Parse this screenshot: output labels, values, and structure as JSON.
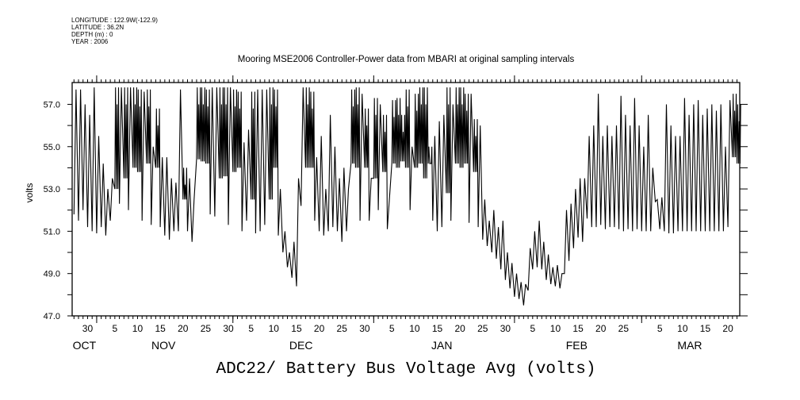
{
  "header": {
    "longitude": "LONGITUDE : 122.9W(-122.9)",
    "latitude": "LATITUDE : 36.2N",
    "depth": "DEPTH (m) : 0",
    "year": "YEAR : 2006"
  },
  "chart_data": {
    "type": "line",
    "title": "Mooring MSE2006 Controller-Power data from MBARI at original sampling intervals",
    "xlabel": "ADC22/ Battery Bus Voltage Avg (volts)",
    "ylabel": "volts",
    "x_units": "days since 2006-10-01",
    "xlim": [
      25.6,
      172.6
    ],
    "ylim": [
      47.0,
      58.03
    ],
    "grid": false,
    "y_ticks": [
      47,
      48,
      49,
      50,
      51,
      52,
      53,
      54,
      55,
      56,
      57
    ],
    "y_tick_labels": [
      {
        "v": 47,
        "t": "47.0"
      },
      {
        "v": 49,
        "t": "49.0"
      },
      {
        "v": 51,
        "t": "51.0"
      },
      {
        "v": 53,
        "t": "53.0"
      },
      {
        "v": 55,
        "t": "55.0"
      },
      {
        "v": 57,
        "t": "57.0"
      }
    ],
    "x_tick_labels": [
      {
        "d": 29,
        "t": "30"
      },
      {
        "d": 35,
        "t": "5"
      },
      {
        "d": 40,
        "t": "10"
      },
      {
        "d": 45,
        "t": "15"
      },
      {
        "d": 50,
        "t": "20"
      },
      {
        "d": 55,
        "t": "25"
      },
      {
        "d": 60,
        "t": "30"
      },
      {
        "d": 65,
        "t": "5"
      },
      {
        "d": 70,
        "t": "10"
      },
      {
        "d": 75,
        "t": "15"
      },
      {
        "d": 80,
        "t": "20"
      },
      {
        "d": 85,
        "t": "25"
      },
      {
        "d": 90,
        "t": "30"
      },
      {
        "d": 96,
        "t": "5"
      },
      {
        "d": 101,
        "t": "10"
      },
      {
        "d": 106,
        "t": "15"
      },
      {
        "d": 111,
        "t": "20"
      },
      {
        "d": 116,
        "t": "25"
      },
      {
        "d": 121,
        "t": "30"
      },
      {
        "d": 127,
        "t": "5"
      },
      {
        "d": 132,
        "t": "10"
      },
      {
        "d": 137,
        "t": "15"
      },
      {
        "d": 142,
        "t": "20"
      },
      {
        "d": 147,
        "t": "25"
      },
      {
        "d": 155,
        "t": "5"
      },
      {
        "d": 160,
        "t": "10"
      },
      {
        "d": 165,
        "t": "15"
      },
      {
        "d": 170,
        "t": "20"
      }
    ],
    "month_boundaries": [
      31,
      61,
      92,
      123,
      151
    ],
    "month_labels": [
      {
        "d": 28.3,
        "t": "OCT"
      },
      {
        "d": 45.7,
        "t": "NOV"
      },
      {
        "d": 76,
        "t": "DEC"
      },
      {
        "d": 107,
        "t": "JAN"
      },
      {
        "d": 136.7,
        "t": "FEB"
      },
      {
        "d": 161.6,
        "t": "MAR"
      }
    ],
    "series": [
      {
        "name": "Battery Bus Voltage Avg",
        "start_day": 26,
        "daily_max": [
          57.7,
          57.7,
          57.0,
          56.5,
          57.8,
          55.5,
          54.2,
          53.0,
          53.5,
          57.8,
          57.8,
          57.8,
          57.8,
          57.8,
          57.7,
          57.6,
          57.7,
          55.0,
          56.8,
          54.5,
          54.5,
          53.5,
          53.3,
          57.7,
          54.0,
          53.5,
          52.5,
          57.8,
          57.8,
          57.7,
          57.8,
          57.8,
          57.8,
          57.8,
          57.8,
          57.7,
          57.6,
          55.2,
          55.8,
          57.6,
          57.7,
          57.7,
          57.7,
          57.8,
          57.7,
          53.0,
          51.0,
          50.0,
          50.5,
          53.5,
          57.8,
          57.8,
          57.6,
          54.5,
          55.5,
          53.0,
          56.5,
          55.0,
          53.5,
          54.0,
          53.0,
          57.7,
          57.8,
          57.5,
          56.8,
          53.5,
          57.3,
          57.0,
          56.5,
          52.5,
          57.2,
          57.3,
          56.5,
          57.7,
          55.0,
          57.5,
          57.8,
          57.8,
          55.0,
          55.5,
          56.2,
          56.5,
          57.8,
          57.0,
          57.8,
          57.8,
          57.5,
          57.5,
          56.3,
          56.0,
          52.5,
          51.5,
          52.0,
          51.2,
          51.5,
          50.0,
          49.5,
          49.0,
          48.6,
          48.5,
          50.2,
          51.0,
          51.5,
          50.5,
          49.9,
          49.3,
          49.4,
          49.0,
          52.0,
          52.3,
          53.0,
          53.5,
          53.5,
          55.5,
          56.0,
          57.5,
          55.5,
          56.0,
          55.5,
          56.0,
          57.4,
          56.5,
          56.0,
          57.3,
          56.0,
          55.0,
          56.5,
          54.0,
          52.5,
          52.6,
          57.0,
          56.0,
          55.5,
          55.5,
          57.3,
          56.5,
          57.0,
          57.2,
          56.5,
          56.8,
          57.0,
          56.7,
          57.0,
          55.0,
          57.2,
          57.5,
          57.0
        ],
        "daily_min": [
          51.8,
          51.5,
          52.0,
          51.2,
          51.0,
          50.9,
          51.2,
          50.8,
          51.5,
          53.0,
          52.3,
          53.5,
          52.0,
          54.0,
          53.8,
          51.5,
          54.2,
          51.3,
          54.0,
          51.2,
          50.8,
          50.6,
          51.0,
          51.0,
          52.5,
          51.0,
          50.5,
          54.4,
          54.3,
          54.2,
          51.8,
          51.7,
          53.5,
          53.6,
          51.3,
          53.8,
          54.0,
          51.0,
          51.5,
          52.5,
          50.9,
          51.0,
          51.3,
          52.5,
          54.0,
          50.8,
          50.0,
          49.3,
          48.8,
          48.4,
          52.2,
          54.0,
          54.0,
          51.5,
          51.0,
          50.8,
          51.0,
          51.2,
          51.0,
          50.5,
          51.0,
          54.2,
          54.0,
          51.5,
          54.0,
          51.5,
          53.5,
          52.0,
          53.8,
          51.1,
          54.2,
          54.0,
          54.3,
          54.0,
          52.0,
          54.0,
          54.2,
          53.5,
          54.2,
          51.5,
          51.0,
          51.2,
          52.8,
          51.5,
          54.2,
          54.0,
          54.2,
          51.4,
          53.8,
          51.2,
          50.6,
          50.3,
          50.0,
          49.7,
          49.2,
          48.7,
          48.3,
          47.9,
          47.8,
          47.5,
          48.2,
          49.2,
          49.3,
          49.2,
          48.7,
          48.5,
          48.4,
          48.3,
          49.0,
          49.6,
          50.2,
          50.7,
          50.5,
          51.6,
          51.2,
          51.2,
          51.3,
          51.1,
          51.2,
          51.2,
          51.1,
          51.0,
          51.1,
          51.0,
          51.1,
          51.0,
          51.0,
          51.0,
          52.4,
          51.1,
          51.0,
          50.9,
          50.9,
          51.0,
          51.0,
          51.0,
          51.0,
          51.0,
          51.0,
          51.0,
          51.0,
          51.0,
          51.0,
          51.0,
          51.2,
          54.5,
          54.2
        ]
      }
    ]
  }
}
